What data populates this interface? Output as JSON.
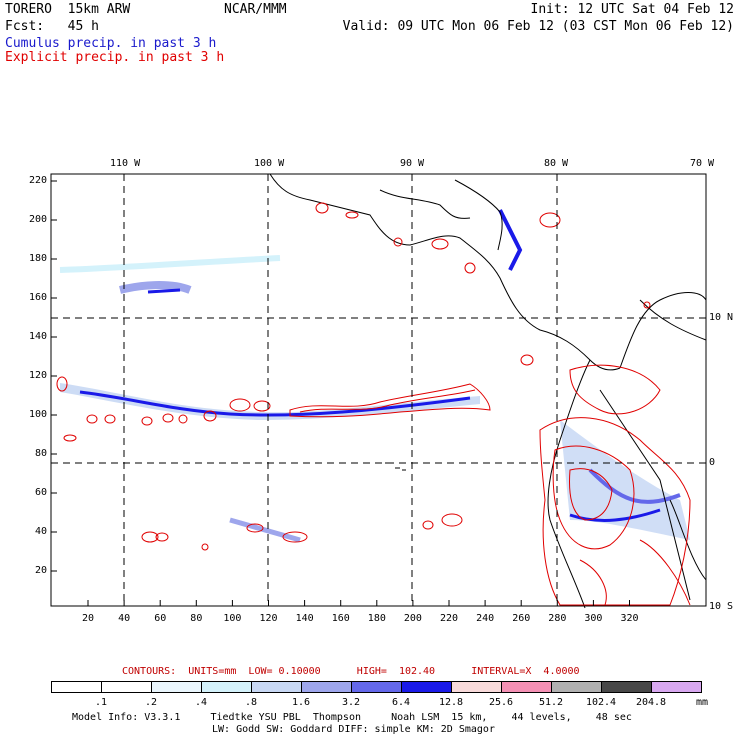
{
  "header": {
    "model": "TORERO  15km ARW",
    "org": "NCAR/MMM",
    "init": "Init: 12 UTC Sat 04 Feb 12",
    "fcst": "Fcst:   45 h",
    "valid": "Valid: 09 UTC Mon 06 Feb 12 (03 CST Mon 06 Feb 12)",
    "legend_cumulus": "Cumulus precip. in past 3 h",
    "legend_explicit": "Explicit precip. in past 3 h"
  },
  "colors": {
    "cumulus_text": "#1a1acc",
    "explicit_text": "#e00000",
    "contour_red": "#e00000",
    "precip_blue": "#0000ee",
    "grid_dash": "#000000"
  },
  "map": {
    "lon_labels": [
      "110 W",
      "100 W",
      "90 W",
      "80 W",
      "70 W"
    ],
    "lat_labels": [
      "10 N",
      "0",
      "10 S"
    ],
    "x_ticks": [
      "20",
      "40",
      "60",
      "80",
      "100",
      "120",
      "140",
      "160",
      "180",
      "200",
      "220",
      "240",
      "260",
      "280",
      "300",
      "320"
    ],
    "y_ticks": [
      "220",
      "200",
      "180",
      "160",
      "140",
      "120",
      "100",
      "80",
      "60",
      "40",
      "20"
    ]
  },
  "footer": {
    "contours_label": "CONTOURS:  UNITS=mm  LOW= 0.10000      HIGH=  102.40      INTERVAL=X  4.0000",
    "colorbar_unit": "mm",
    "colorbar_labels": [
      ".1",
      ".2",
      ".4",
      ".8",
      "1.6",
      "3.2",
      "6.4",
      "12.8",
      "25.6",
      "51.2",
      "102.4",
      "204.8"
    ],
    "colorbar_colors": [
      "#ffffff",
      "#ffffff",
      "#eaf6fd",
      "#d4f2fb",
      "#c8d8f4",
      "#9ea6ec",
      "#6468ea",
      "#1a1ae8",
      "#f8dada",
      "#f490b4",
      "#b0b0b0",
      "#484848",
      "#d8a8f0"
    ],
    "model_info_1": "Model Info: V3.3.1     Tiedtke YSU PBL  Thompson     Noah LSM  15 km,    44 levels,    48 sec",
    "model_info_2": "LW: Godd SW: Goddard DIFF: simple KM: 2D Smagor"
  }
}
